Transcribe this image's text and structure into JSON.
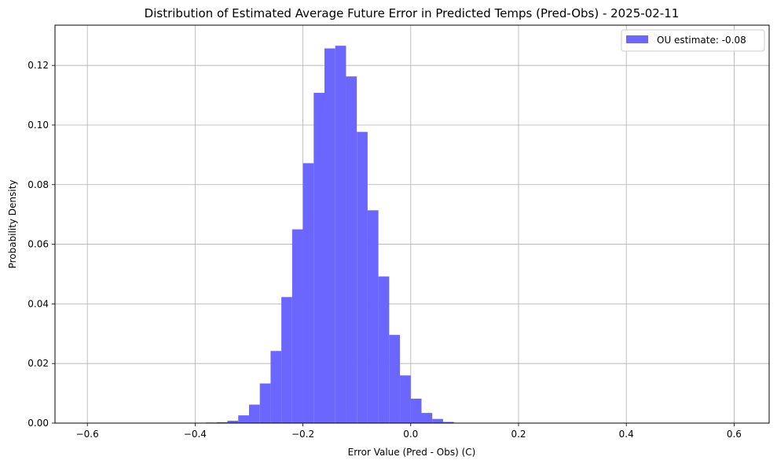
{
  "chart_data": {
    "type": "bar",
    "subtype": "histogram",
    "title": "Distribution of Estimated Average Future Error in Predicted Temps (Pred-Obs) - 2025-02-11",
    "xlabel": "Error Value (Pred - Obs) (C)",
    "ylabel": "Probability Density",
    "xlim": [
      -0.66,
      0.665
    ],
    "ylim": [
      0,
      0.1335
    ],
    "xticks": [
      -0.6,
      -0.4,
      -0.2,
      0.0,
      0.2,
      0.4,
      0.6
    ],
    "xtick_labels": [
      "−0.6",
      "−0.4",
      "−0.2",
      "0.0",
      "0.2",
      "0.4",
      "0.6"
    ],
    "yticks": [
      0,
      0.02,
      0.04,
      0.06,
      0.08,
      0.1,
      0.12
    ],
    "ytick_labels": [
      "0.00",
      "0.02",
      "0.04",
      "0.06",
      "0.08",
      "0.10",
      "0.12"
    ],
    "grid": true,
    "legend_position": "top-right",
    "bar_color": "#6a66ff",
    "series": [
      {
        "name": "OU estimate: -0.08",
        "bins": [
          [
            -0.38,
            -0.36
          ],
          [
            -0.36,
            -0.34
          ],
          [
            -0.34,
            -0.32
          ],
          [
            -0.32,
            -0.3
          ],
          [
            -0.3,
            -0.28
          ],
          [
            -0.28,
            -0.26
          ],
          [
            -0.26,
            -0.24
          ],
          [
            -0.24,
            -0.22
          ],
          [
            -0.22,
            -0.2
          ],
          [
            -0.2,
            -0.18
          ],
          [
            -0.18,
            -0.16
          ],
          [
            -0.16,
            -0.14
          ],
          [
            -0.14,
            -0.12
          ],
          [
            -0.12,
            -0.1
          ],
          [
            -0.1,
            -0.08
          ],
          [
            -0.08,
            -0.06
          ],
          [
            -0.06,
            -0.04
          ],
          [
            -0.04,
            -0.02
          ],
          [
            -0.02,
            0.0
          ],
          [
            0.0,
            0.02
          ],
          [
            0.02,
            0.04
          ],
          [
            0.04,
            0.06
          ],
          [
            0.06,
            0.08
          ],
          [
            0.08,
            0.1
          ],
          [
            0.1,
            0.12
          ],
          [
            0.12,
            0.14
          ],
          [
            0.14,
            0.16
          ],
          [
            0.16,
            0.18
          ],
          [
            0.18,
            0.2
          ],
          [
            0.2,
            0.22
          ]
        ],
        "values": [
          0.0002,
          0.0003,
          0.0008,
          0.0026,
          0.0062,
          0.0133,
          0.0242,
          0.0423,
          0.065,
          0.0872,
          0.1108,
          0.1257,
          0.1266,
          0.1163,
          0.0977,
          0.0714,
          0.0492,
          0.0296,
          0.016,
          0.0082,
          0.0034,
          0.0014,
          0.0004,
          0.0001,
          5e-05,
          3e-05,
          2e-05,
          1e-05,
          1e-05,
          1e-05
        ]
      }
    ]
  }
}
